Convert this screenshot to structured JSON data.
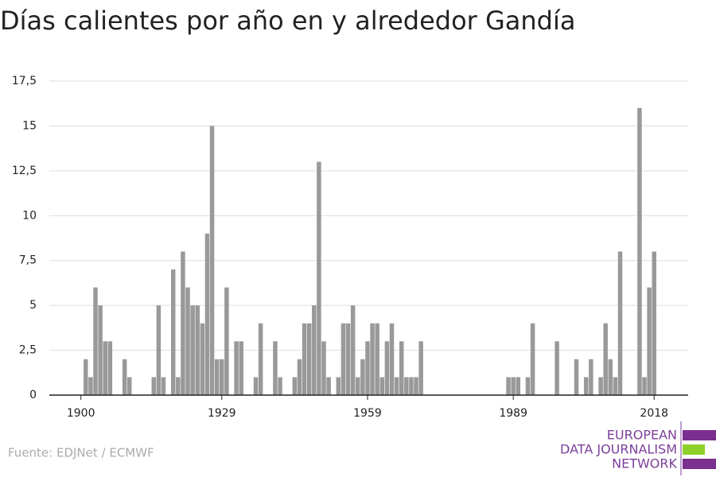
{
  "chart_data": {
    "type": "bar",
    "title": "Días calientes por año en y alrededor Gandía",
    "source": "Fuente: EDJNet / ECMWF",
    "logo": [
      "EUROPEAN",
      "DATA JOURNALISM",
      "NETWORK"
    ],
    "color": "#999999",
    "x": [
      1901,
      1902,
      1903,
      1904,
      1905,
      1906,
      1909,
      1910,
      1915,
      1916,
      1917,
      1919,
      1920,
      1921,
      1922,
      1923,
      1924,
      1925,
      1926,
      1927,
      1928,
      1929,
      1930,
      1932,
      1933,
      1936,
      1937,
      1940,
      1941,
      1944,
      1945,
      1946,
      1947,
      1948,
      1949,
      1950,
      1951,
      1953,
      1954,
      1955,
      1956,
      1957,
      1958,
      1959,
      1960,
      1961,
      1962,
      1963,
      1964,
      1965,
      1966,
      1967,
      1968,
      1969,
      1970,
      1988,
      1989,
      1990,
      1992,
      1993,
      1998,
      2002,
      2004,
      2005,
      2007,
      2008,
      2009,
      2010,
      2011,
      2015,
      2016,
      2017,
      2018
    ],
    "values": [
      2,
      1,
      6,
      5,
      3,
      3,
      2,
      1,
      1,
      5,
      1,
      7,
      1,
      8,
      6,
      5,
      5,
      4,
      9,
      15,
      2,
      2,
      6,
      3,
      3,
      1,
      4,
      3,
      1,
      1,
      2,
      4,
      4,
      5,
      13,
      3,
      1,
      1,
      4,
      4,
      5,
      1,
      2,
      3,
      4,
      4,
      1,
      3,
      4,
      1,
      3,
      1,
      1,
      1,
      3,
      1,
      1,
      1,
      1,
      4,
      3,
      2,
      1,
      2,
      1,
      4,
      2,
      1,
      8,
      16,
      1,
      6,
      8
    ],
    "xlim": [
      1893.5,
      2025
    ],
    "xticks": [
      1900,
      1929,
      1959,
      1989,
      2018
    ],
    "ylim": [
      0,
      17.5
    ],
    "yticks": [
      0,
      {
        "value": 2.5,
        "label": "2,5"
      },
      5,
      {
        "value": 7.5,
        "label": "7,5"
      },
      10,
      {
        "value": 12.5,
        "label": "12,5"
      },
      15,
      {
        "value": 17.5,
        "label": "17,5"
      }
    ],
    "grid": true
  }
}
